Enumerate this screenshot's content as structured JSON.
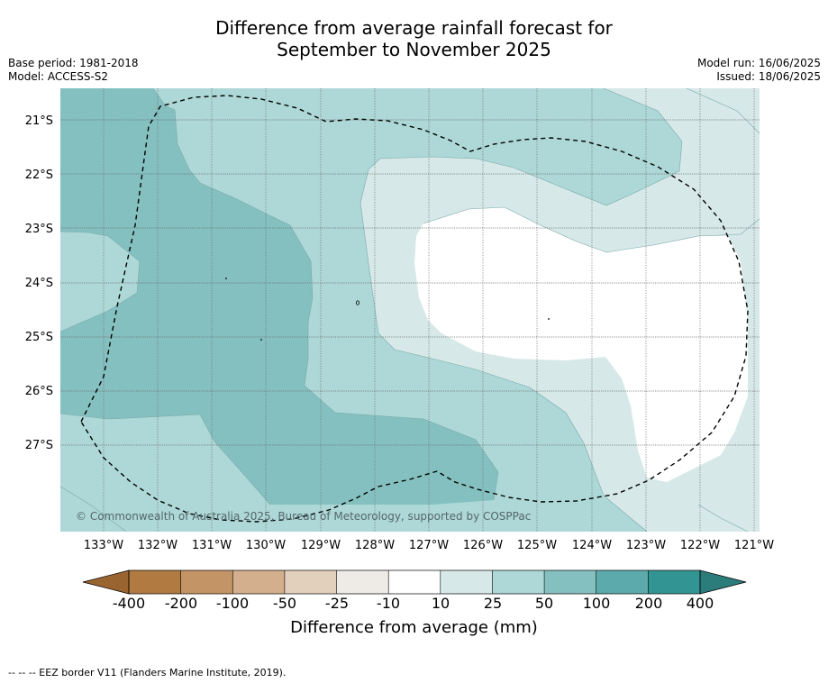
{
  "title": {
    "line1": "Difference from average rainfall forecast for",
    "line2": "September to November 2025"
  },
  "meta_left": {
    "base_period": "Base period: 1981-2018",
    "model": "Model: ACCESS-S2"
  },
  "meta_right": {
    "model_run": "Model run: 16/06/2025",
    "issued": "Issued: 18/06/2025"
  },
  "map": {
    "lat_labels": [
      "21°S",
      "22°S",
      "23°S",
      "24°S",
      "25°S",
      "26°S",
      "27°S"
    ],
    "lon_labels": [
      "133°W",
      "132°W",
      "131°W",
      "130°W",
      "129°W",
      "128°W",
      "127°W",
      "126°W",
      "125°W",
      "124°W",
      "123°W",
      "122°W",
      "121°W"
    ],
    "copyright": "© Commonwealth of Australia 2025, Bureau of Meteorology, supported by COSPPac",
    "zone_colors": {
      "25_to_50": "#add8d7",
      "50_to_100": "#85c0c0",
      "10_to_25": "#d6e9e8",
      "minus10_to_10": "#ffffff"
    }
  },
  "colorbar": {
    "ticks": [
      "-400",
      "-200",
      "-100",
      "-50",
      "-25",
      "-10",
      "10",
      "25",
      "50",
      "100",
      "200",
      "400"
    ],
    "colors": [
      "#b07a40",
      "#c29466",
      "#d3af8e",
      "#e3d0bc",
      "#eeebe7",
      "#ffffff",
      "#d6e9e8",
      "#add8d7",
      "#85c0c0",
      "#5caaab",
      "#339593"
    ],
    "under_color": "#9a6430",
    "over_color": "#2a7d7b",
    "label": "Difference from average (mm)"
  },
  "footer": "--  --  -- EEZ border V11 (Flanders Marine Institute, 2019)."
}
